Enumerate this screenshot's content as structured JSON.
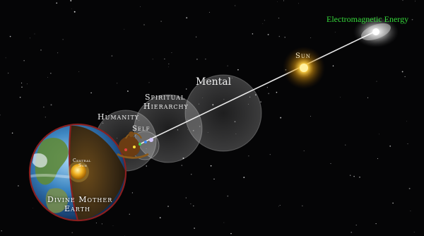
{
  "diagram": {
    "labels": {
      "electromagnetic_energy": "Electromagnetic Energy",
      "sun": "Sun",
      "mental": "Mental",
      "spiritual_line1": "Spiritual",
      "spiritual_line2": "Hierarchy",
      "humanity": "Humanity",
      "self": "Self",
      "central_line1": "Central",
      "central_line2": "Sun",
      "earth_line1": "Divine Mother",
      "earth_line2": "Earth"
    },
    "colors": {
      "space": "#050506",
      "energy_text": "#35d83a",
      "sun_glow": "#ffd34a",
      "sphere": "#ffffff",
      "earth_rim": "#8a1f1f",
      "ray": "#ffffff"
    },
    "icons": [
      "galaxy-icon",
      "sun-icon",
      "meditating-figure-icon",
      "central-sun-icon",
      "earth-globe-icon"
    ]
  }
}
